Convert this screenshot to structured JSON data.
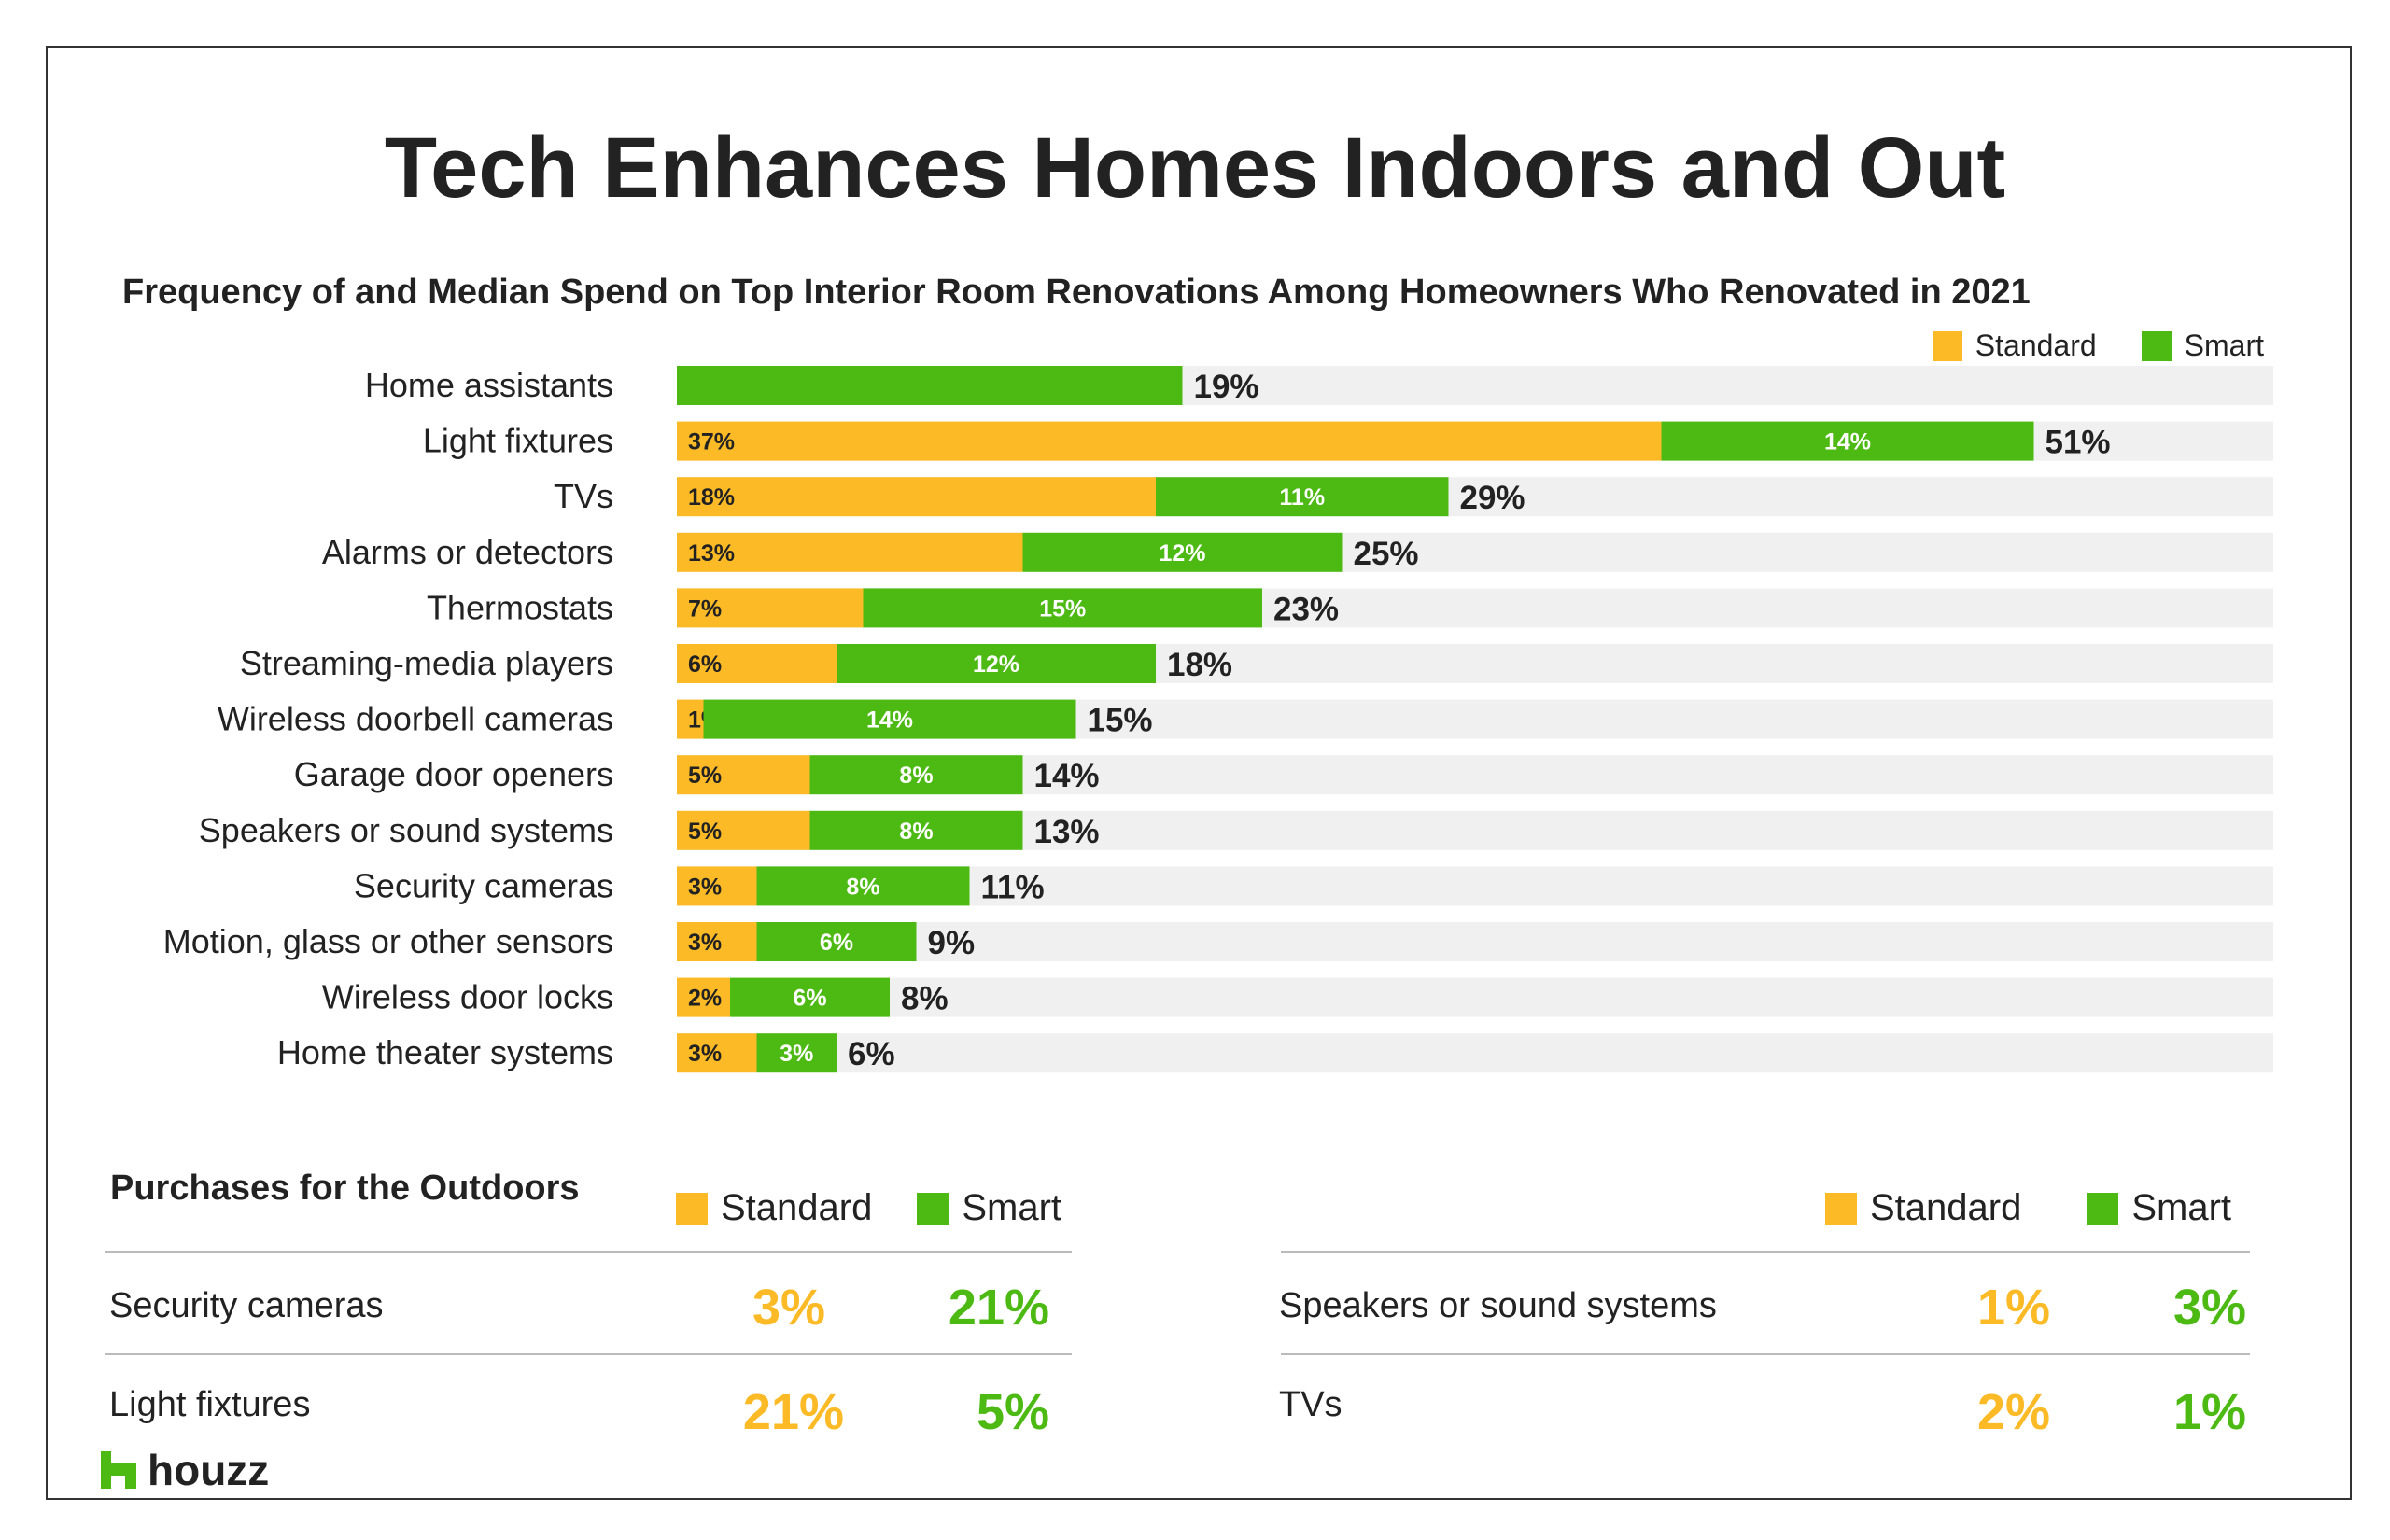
{
  "title": "Tech Enhances Homes Indoors and Out",
  "subtitle": "Frequency of and Median Spend on Top Interior Room Renovations Among Homeowners Who Renovated in 2021",
  "colors": {
    "standard": "#FBBA26",
    "smart": "#4DBA14",
    "track": "#F0F0F0"
  },
  "legend": {
    "standard": "Standard",
    "smart": "Smart"
  },
  "chart_data": {
    "type": "bar",
    "orientation": "horizontal",
    "stacked": true,
    "categories": [
      "Home assistants",
      "Light fixtures",
      "TVs",
      "Alarms or detectors",
      "Thermostats",
      "Streaming-media players",
      "Wireless doorbell cameras",
      "Garage door openers",
      "Speakers or sound systems",
      "Security cameras",
      "Motion, glass or other sensors",
      "Wireless door locks",
      "Home theater systems"
    ],
    "series": [
      {
        "name": "Standard",
        "values": [
          0,
          37,
          18,
          13,
          7,
          6,
          1,
          5,
          5,
          3,
          3,
          2,
          3
        ]
      },
      {
        "name": "Smart",
        "values": [
          19,
          14,
          11,
          12,
          15,
          12,
          14,
          8,
          8,
          8,
          6,
          6,
          3
        ]
      }
    ],
    "totals": [
      19,
      51,
      29,
      25,
      23,
      18,
      15,
      14,
      13,
      11,
      9,
      8,
      6
    ],
    "xlim": [
      0,
      60
    ],
    "legend_position": "top-right",
    "grid": false
  },
  "outdoors": {
    "title": "Purchases for the Outdoors",
    "left": [
      {
        "label": "Security cameras",
        "standard": "3%",
        "smart": "21%"
      },
      {
        "label": "Light fixtures",
        "standard": "21%",
        "smart": "5%"
      }
    ],
    "right": [
      {
        "label": "Speakers or sound systems",
        "standard": "1%",
        "smart": "3%"
      },
      {
        "label": "TVs",
        "standard": "2%",
        "smart": "1%"
      }
    ]
  },
  "logo": {
    "text": "houzz"
  }
}
